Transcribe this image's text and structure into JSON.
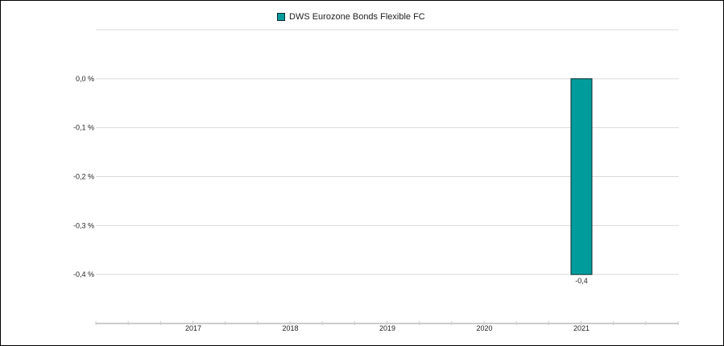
{
  "chart_data": {
    "type": "bar",
    "categories": [
      "2017",
      "2018",
      "2019",
      "2020",
      "2021"
    ],
    "series": [
      {
        "name": "DWS Eurozone Bonds Flexible  FC",
        "color": "#009c9c",
        "values": [
          null,
          null,
          null,
          null,
          -0.4
        ]
      }
    ],
    "data_labels": [
      "",
      "",
      "",
      "",
      "-0,4"
    ],
    "yticks": [
      0.0,
      -0.1,
      -0.2,
      -0.3,
      -0.4
    ],
    "ytick_labels": [
      "0,0 %",
      "-0,1 %",
      "-0,2 %",
      "-0,3 %",
      "-0,4 %"
    ],
    "ylim": [
      -0.5,
      0.1
    ],
    "legend_position": "top-center",
    "grid": true,
    "bar_border_color": "#0b2e2f",
    "grid_color": "#d9d9d9",
    "axis_color": "#cccccc"
  }
}
